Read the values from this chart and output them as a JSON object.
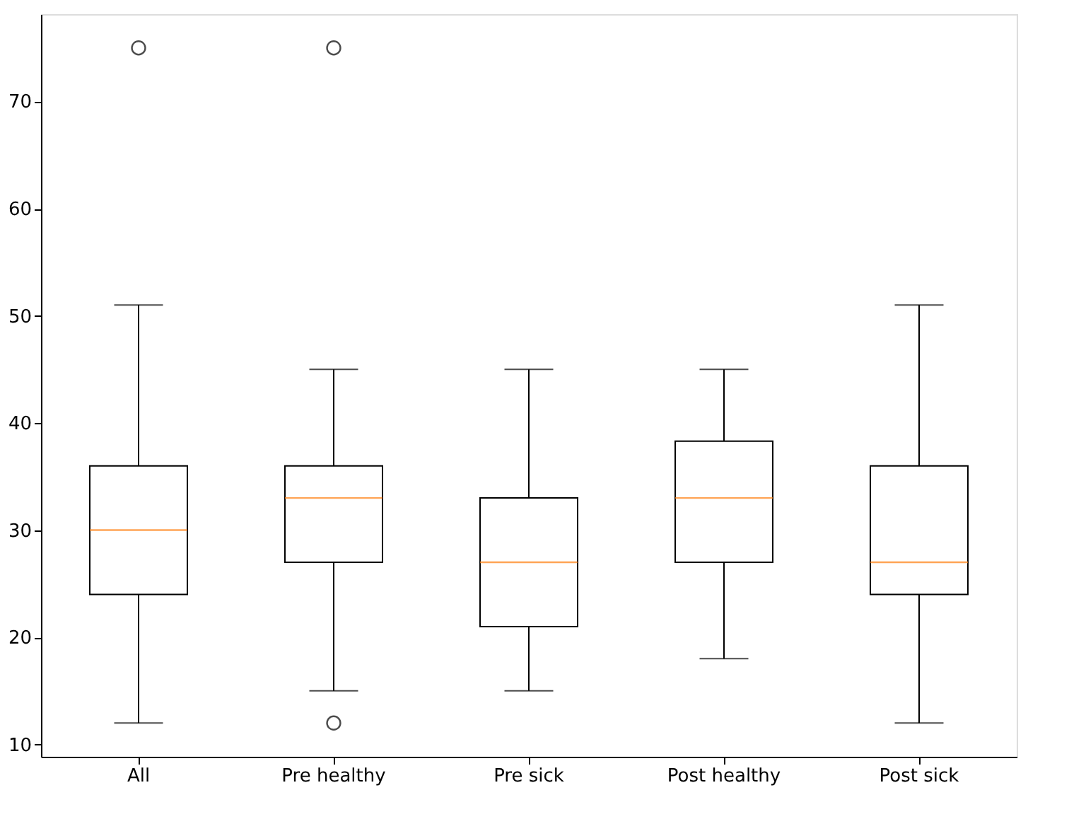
{
  "chart_data": {
    "type": "box",
    "categories": [
      "All",
      "Pre healthy",
      "Pre sick",
      "Post healthy",
      "Post sick"
    ],
    "boxes": [
      {
        "low": 12,
        "q1": 24,
        "median": 30,
        "q3": 36,
        "high": 51,
        "outliers": [
          75
        ]
      },
      {
        "low": 15,
        "q1": 27,
        "median": 33,
        "q3": 36,
        "high": 45,
        "outliers": [
          75,
          12
        ]
      },
      {
        "low": 15,
        "q1": 21,
        "median": 27,
        "q3": 33,
        "high": 45
      },
      {
        "low": 18,
        "q1": 27,
        "median": 33,
        "q3": 38.3,
        "high": 45
      },
      {
        "low": 12,
        "q1": 24,
        "median": 27,
        "q3": 36,
        "high": 51
      }
    ],
    "ylim": [
      8.85,
      78.15
    ],
    "yticks": [
      10,
      20,
      30,
      40,
      50,
      60,
      70
    ],
    "grid": false
  }
}
